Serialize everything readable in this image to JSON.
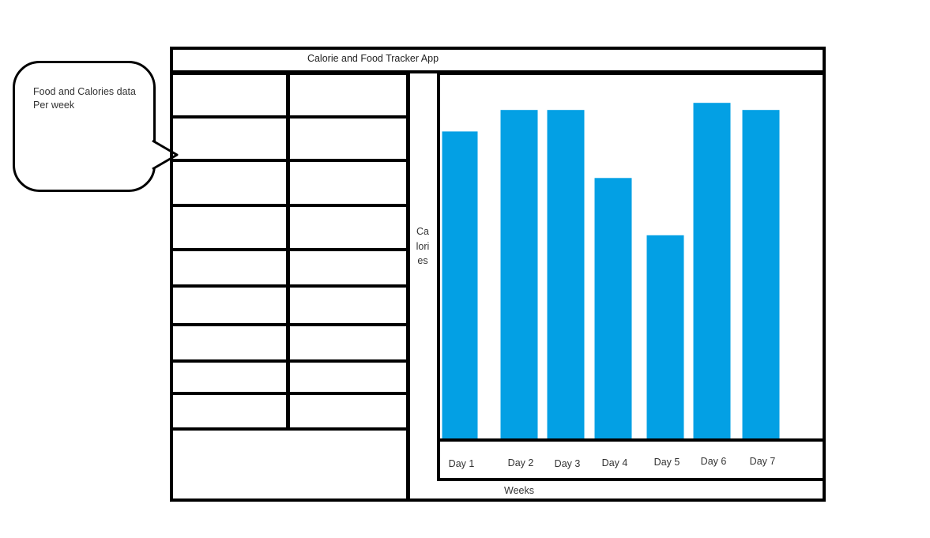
{
  "callout": {
    "text": "Food and Calories data Per week"
  },
  "window": {
    "title": "Calorie and Food Tracker App"
  },
  "data_grid": {
    "rows": 9,
    "columns": 2,
    "cells": []
  },
  "chart_data": {
    "type": "bar",
    "categories": [
      "Day 1",
      "Day 2",
      "Day 3",
      "Day 4",
      "Day 5",
      "Day 6",
      "Day 7"
    ],
    "values": [
      86,
      92,
      92,
      73,
      57,
      94,
      92
    ],
    "xlabel": "Weeks",
    "ylabel": "Calories",
    "ylim": [
      0,
      100
    ],
    "grid": false,
    "bar_color": "#03a0e4"
  }
}
